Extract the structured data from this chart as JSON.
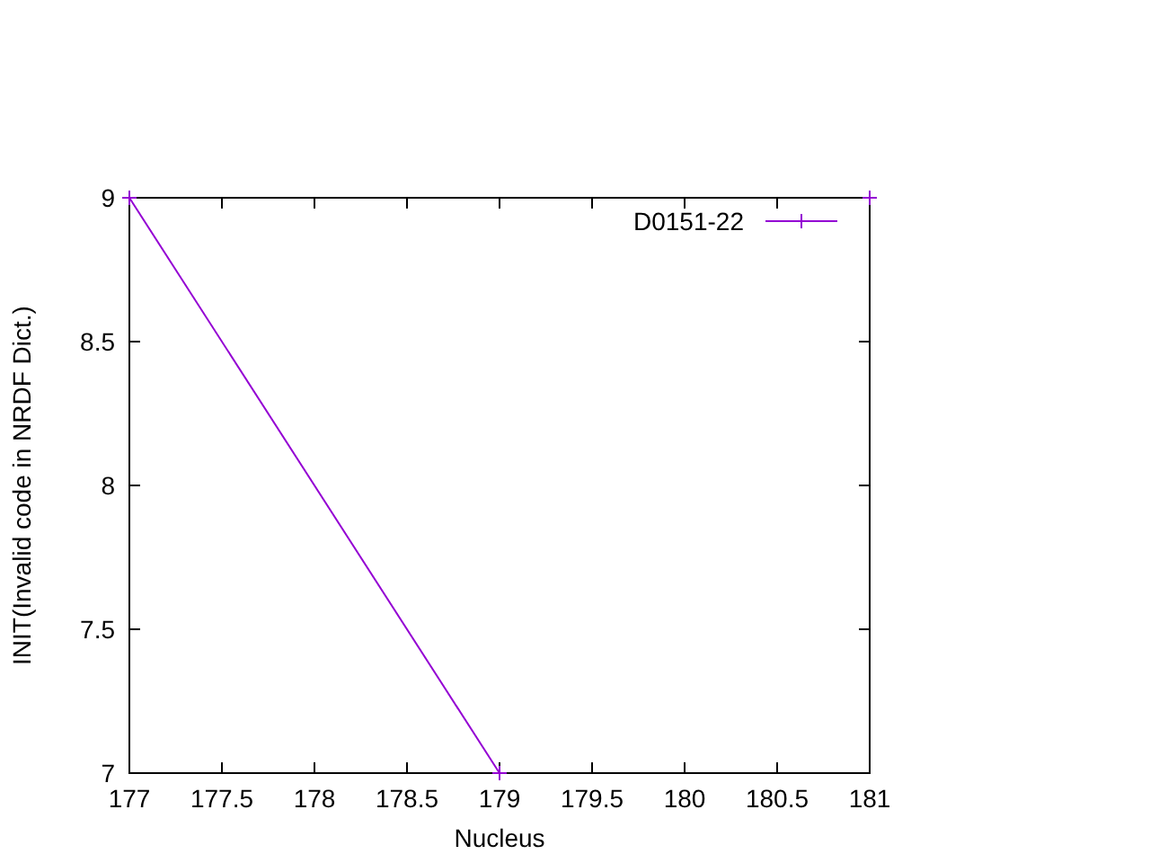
{
  "chart_data": {
    "type": "line",
    "xlabel": "Nucleus",
    "ylabel": "INIT(Invalid code in NRDF Dict.)",
    "x": [
      177,
      179,
      180,
      181
    ],
    "series": [
      {
        "name": "D0151-22",
        "color": "#9400d3",
        "values": [
          9,
          7,
          null,
          9
        ]
      }
    ],
    "xlim": [
      177,
      181
    ],
    "xticks": [
      177,
      177.5,
      178,
      178.5,
      179,
      179.5,
      180,
      180.5,
      181
    ],
    "ylim": [
      7,
      9
    ],
    "yticks": [
      7,
      7.5,
      8,
      8.5,
      9
    ],
    "grid": false,
    "legend": "top right",
    "marker": "cross",
    "line_style": "solid"
  }
}
